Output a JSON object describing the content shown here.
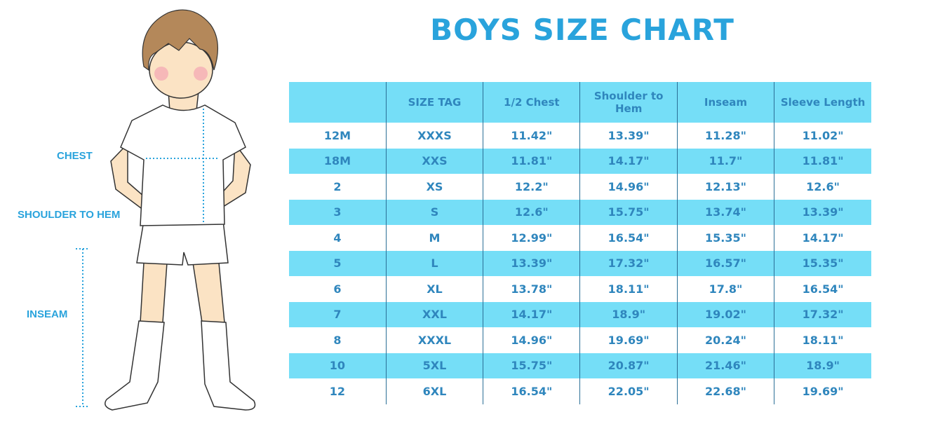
{
  "title": "BOYS SIZE CHART",
  "diagram": {
    "labels": [
      "CHEST",
      "SHOULDER TO HEM",
      "INSEAM"
    ]
  },
  "table": {
    "header": [
      "SIZE TAG",
      "1/2 Chest",
      "Shoulder to Hem",
      "Inseam",
      "Sleeve Length"
    ],
    "rows": [
      [
        "12M",
        "XXXS",
        "11.42\"",
        "13.39\"",
        "11.28\"",
        "11.02\""
      ],
      [
        "18M",
        "XXS",
        "11.81\"",
        "14.17\"",
        "11.7\"",
        "11.81\""
      ],
      [
        "2",
        "XS",
        "12.2\"",
        "14.96\"",
        "12.13\"",
        "12.6\""
      ],
      [
        "3",
        "S",
        "12.6\"",
        "15.75\"",
        "13.74\"",
        "13.39\""
      ],
      [
        "4",
        "M",
        "12.99\"",
        "16.54\"",
        "15.35\"",
        "14.17\""
      ],
      [
        "5",
        "L",
        "13.39\"",
        "17.32\"",
        "16.57\"",
        "15.35\""
      ],
      [
        "6",
        "XL",
        "13.78\"",
        "18.11\"",
        "17.8\"",
        "16.54\""
      ],
      [
        "7",
        "XXL",
        "14.17\"",
        "18.9\"",
        "19.02\"",
        "17.32\""
      ],
      [
        "8",
        "XXXL",
        "14.96\"",
        "19.69\"",
        "20.24\"",
        "18.11\""
      ],
      [
        "10",
        "5XL",
        "15.75\"",
        "20.87\"",
        "21.46\"",
        "18.9\""
      ],
      [
        "12",
        "6XL",
        "16.54\"",
        "22.05\"",
        "22.68\"",
        "19.69\""
      ]
    ]
  }
}
